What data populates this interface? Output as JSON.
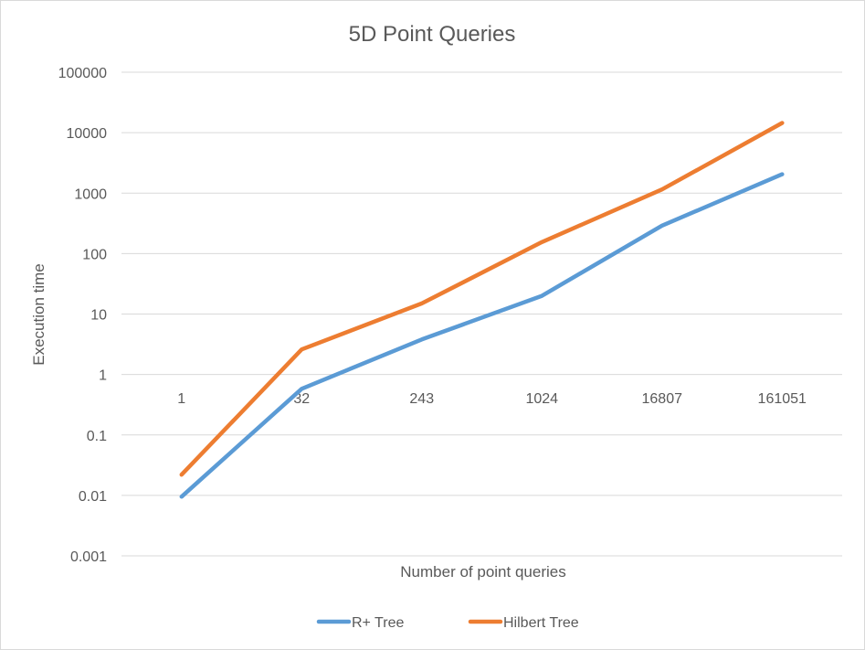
{
  "chart_data": {
    "type": "line",
    "title": "5D Point Queries",
    "xlabel": "Number of point queries",
    "ylabel": "Execution time",
    "y_scale": "log",
    "ylim": [
      0.001,
      100000
    ],
    "y_ticks": [
      "0.001",
      "0.01",
      "0.1",
      "1",
      "10",
      "100",
      "1000",
      "10000",
      "100000"
    ],
    "categories": [
      "1",
      "32",
      "243",
      "1024",
      "16807",
      "161051"
    ],
    "series": [
      {
        "name": "R+ Tree",
        "color": "#5b9bd5",
        "values": [
          0.0095,
          0.58,
          3.8,
          20,
          290,
          2050
        ]
      },
      {
        "name": "Hilbert Tree",
        "color": "#ed7d31",
        "values": [
          0.022,
          2.6,
          15,
          155,
          1150,
          14500
        ]
      }
    ],
    "grid": true,
    "legend_position": "bottom"
  }
}
